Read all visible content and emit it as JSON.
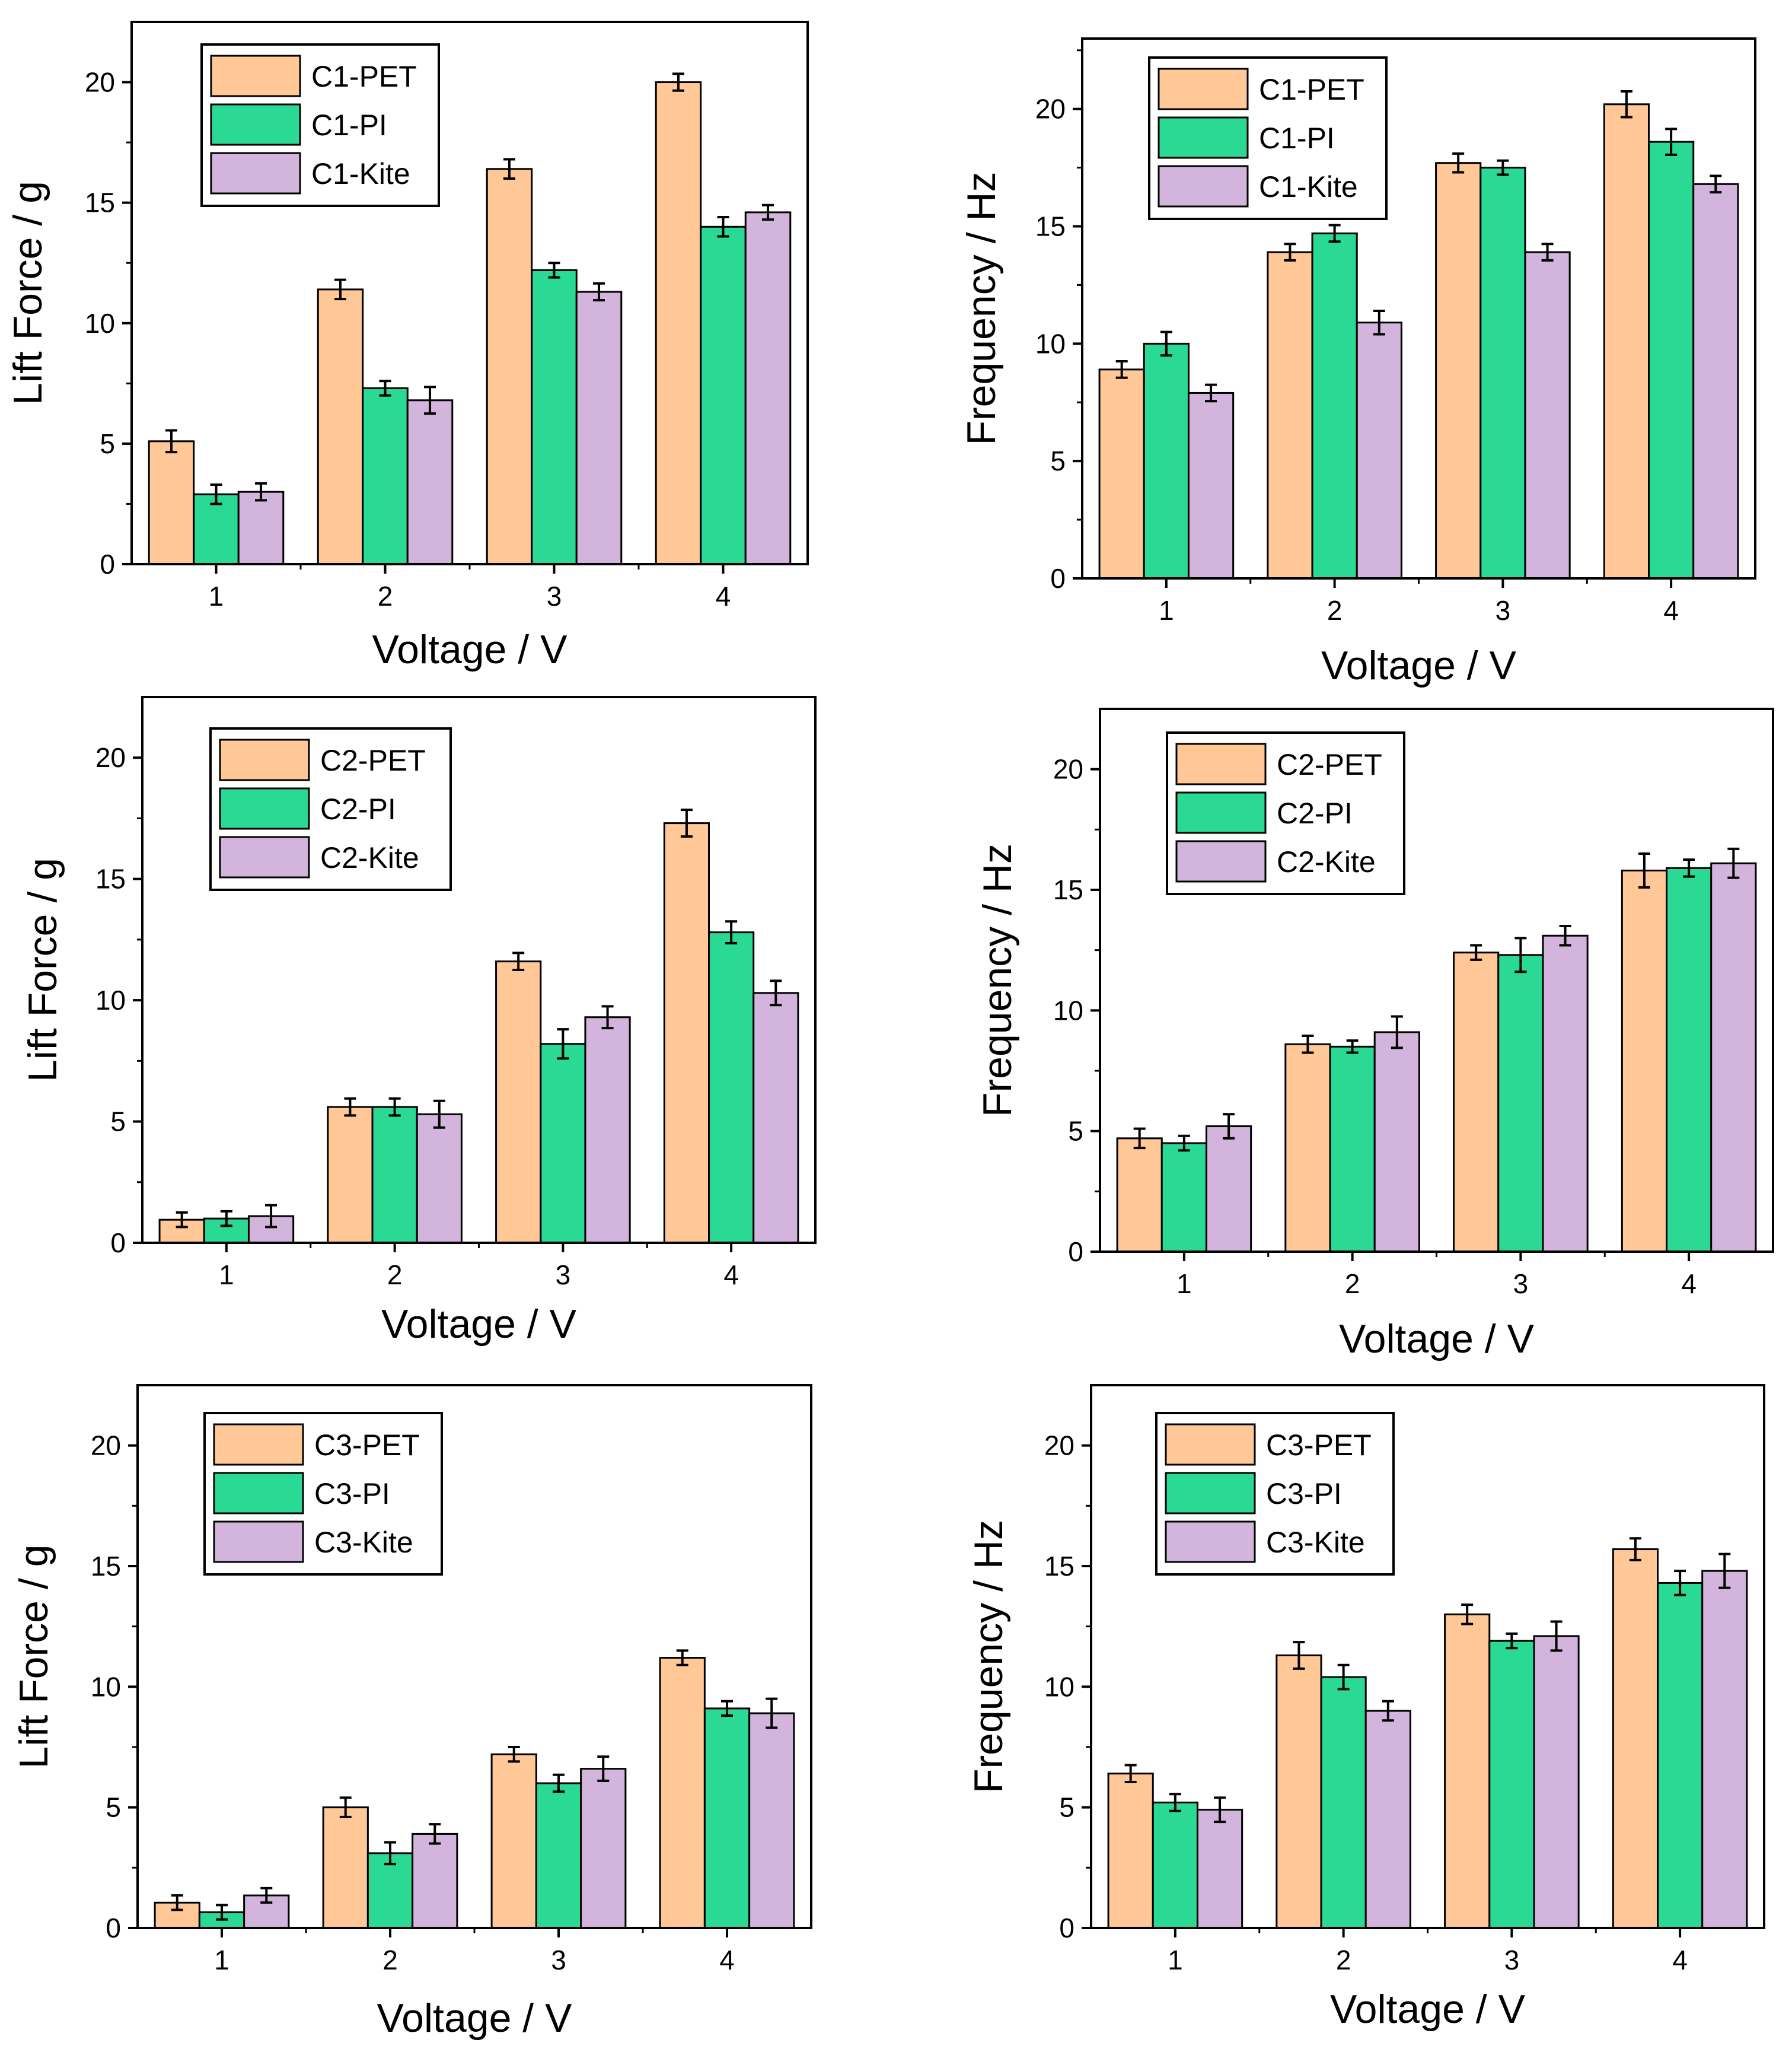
{
  "colors": {
    "PET": "#FFC896",
    "PI": "#2AD993",
    "Kite": "#D2B4DC",
    "frame": "#000000"
  },
  "chart_data": [
    {
      "type": "bar",
      "title": "",
      "xlabel": "Voltage / V",
      "ylabel": "Lift Force / g",
      "categories": [
        "1",
        "2",
        "3",
        "4"
      ],
      "ylim": [
        0,
        22.5
      ],
      "yticks": [
        "0",
        "5",
        "10",
        "15",
        "20"
      ],
      "legend_position": "top-left",
      "series": [
        {
          "name": "C1-PET",
          "values": [
            5.1,
            11.4,
            16.4,
            20.0
          ],
          "errors": [
            0.45,
            0.4,
            0.4,
            0.35
          ]
        },
        {
          "name": "C1-PI",
          "values": [
            2.9,
            7.3,
            12.2,
            14.0
          ],
          "errors": [
            0.4,
            0.3,
            0.3,
            0.4
          ]
        },
        {
          "name": "C1-Kite",
          "values": [
            3.0,
            6.8,
            11.3,
            14.6
          ],
          "errors": [
            0.35,
            0.55,
            0.35,
            0.3
          ]
        }
      ]
    },
    {
      "type": "bar",
      "title": "",
      "xlabel": "Voltage / V",
      "ylabel": "Frequency / Hz",
      "categories": [
        "1",
        "2",
        "3",
        "4"
      ],
      "ylim": [
        0,
        23
      ],
      "yticks": [
        "0",
        "5",
        "10",
        "15",
        "20"
      ],
      "legend_position": "top-left",
      "series": [
        {
          "name": "C1-PET",
          "values": [
            8.9,
            13.9,
            17.7,
            20.2
          ],
          "errors": [
            0.35,
            0.35,
            0.4,
            0.55
          ]
        },
        {
          "name": "C1-PI",
          "values": [
            10.0,
            14.7,
            17.5,
            18.6
          ],
          "errors": [
            0.5,
            0.35,
            0.3,
            0.55
          ]
        },
        {
          "name": "C1-Kite",
          "values": [
            7.9,
            10.9,
            13.9,
            16.8
          ],
          "errors": [
            0.35,
            0.5,
            0.35,
            0.35
          ]
        }
      ]
    },
    {
      "type": "bar",
      "title": "",
      "xlabel": "Voltage / V",
      "ylabel": "Lift Force / g",
      "categories": [
        "1",
        "2",
        "3",
        "4"
      ],
      "ylim": [
        0,
        22.5
      ],
      "yticks": [
        "0",
        "5",
        "10",
        "15",
        "20"
      ],
      "legend_position": "top-left",
      "series": [
        {
          "name": "C2-PET",
          "values": [
            0.95,
            5.6,
            11.6,
            17.3
          ],
          "errors": [
            0.3,
            0.35,
            0.35,
            0.55
          ]
        },
        {
          "name": "C2-PI",
          "values": [
            1.0,
            5.6,
            8.2,
            12.8
          ],
          "errors": [
            0.3,
            0.35,
            0.6,
            0.45
          ]
        },
        {
          "name": "C2-Kite",
          "values": [
            1.1,
            5.3,
            9.3,
            10.3
          ],
          "errors": [
            0.45,
            0.55,
            0.45,
            0.5
          ]
        }
      ]
    },
    {
      "type": "bar",
      "title": "",
      "xlabel": "Voltage / V",
      "ylabel": "Frequency / Hz",
      "categories": [
        "1",
        "2",
        "3",
        "4"
      ],
      "ylim": [
        0,
        22.5
      ],
      "yticks": [
        "0",
        "5",
        "10",
        "15",
        "20"
      ],
      "legend_position": "top-left",
      "series": [
        {
          "name": "C2-PET",
          "values": [
            4.7,
            8.6,
            12.4,
            15.8
          ],
          "errors": [
            0.4,
            0.35,
            0.3,
            0.7
          ]
        },
        {
          "name": "C2-PI",
          "values": [
            4.5,
            8.5,
            12.3,
            15.9
          ],
          "errors": [
            0.3,
            0.25,
            0.7,
            0.35
          ]
        },
        {
          "name": "C2-Kite",
          "values": [
            5.2,
            9.1,
            13.1,
            16.1
          ],
          "errors": [
            0.5,
            0.65,
            0.4,
            0.6
          ]
        }
      ]
    },
    {
      "type": "bar",
      "title": "",
      "xlabel": "Voltage / V",
      "ylabel": "Lift Force / g",
      "categories": [
        "1",
        "2",
        "3",
        "4"
      ],
      "ylim": [
        0,
        22.5
      ],
      "yticks": [
        "0",
        "5",
        "10",
        "15",
        "20"
      ],
      "legend_position": "top-left",
      "series": [
        {
          "name": "C3-PET",
          "values": [
            1.05,
            5.0,
            7.2,
            11.2
          ],
          "errors": [
            0.3,
            0.4,
            0.3,
            0.3
          ]
        },
        {
          "name": "C3-PI",
          "values": [
            0.65,
            3.1,
            6.0,
            9.1
          ],
          "errors": [
            0.3,
            0.45,
            0.35,
            0.3
          ]
        },
        {
          "name": "C3-Kite",
          "values": [
            1.35,
            3.9,
            6.6,
            8.9
          ],
          "errors": [
            0.3,
            0.4,
            0.5,
            0.6
          ]
        }
      ]
    },
    {
      "type": "bar",
      "title": "",
      "xlabel": "Voltage / V",
      "ylabel": "Frequency / Hz",
      "categories": [
        "1",
        "2",
        "3",
        "4"
      ],
      "ylim": [
        0,
        22.5
      ],
      "yticks": [
        "0",
        "5",
        "10",
        "15",
        "20"
      ],
      "legend_position": "top-left",
      "series": [
        {
          "name": "C3-PET",
          "values": [
            6.4,
            11.3,
            13.0,
            15.7
          ],
          "errors": [
            0.35,
            0.55,
            0.4,
            0.45
          ]
        },
        {
          "name": "C3-PI",
          "values": [
            5.2,
            10.4,
            11.9,
            14.3
          ],
          "errors": [
            0.35,
            0.5,
            0.3,
            0.5
          ]
        },
        {
          "name": "C3-Kite",
          "values": [
            4.9,
            9.0,
            12.1,
            14.8
          ],
          "errors": [
            0.5,
            0.4,
            0.6,
            0.7
          ]
        }
      ]
    }
  ]
}
